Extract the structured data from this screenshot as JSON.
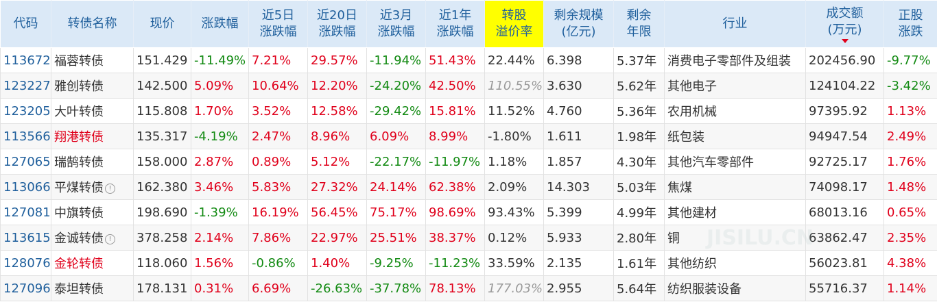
{
  "colors": {
    "up": "#e0001b",
    "down": "#128a12",
    "header_bg": "#dbe9f7",
    "highlight": "#ffff00",
    "code": "#1f5f9c"
  },
  "headers": {
    "code": "代码",
    "name": "转债名称",
    "price": "现价",
    "change": "涨跌幅",
    "change5d": "近5日\n涨跌幅",
    "change20d": "近20日\n涨跌幅",
    "change3m": "近3月\n涨跌幅",
    "change1y": "近1年\n涨跌幅",
    "premium": "转股\n溢价率",
    "scale": "剩余规模\n(亿元)",
    "years": "剩余\n年限",
    "industry": "行业",
    "volume": "成交额\n(万元)",
    "stock_change": "正股\n涨跌"
  },
  "sort": {
    "column": "volume",
    "direction": "desc"
  },
  "rows": [
    {
      "code": "113672",
      "name": "福蓉转债",
      "name_red": false,
      "info": false,
      "price": "151.429",
      "change": "-11.49%",
      "change5d": "7.21%",
      "change20d": "29.57%",
      "change3m": "-11.94%",
      "change1y": "51.43%",
      "premium": "22.44%",
      "premium_muted": false,
      "scale": "6.398",
      "years": "5.37年",
      "industry": "消费电子零部件及组装",
      "volume": "202456.90",
      "stock_change": "-9.77%"
    },
    {
      "code": "123227",
      "name": "雅创转债",
      "name_red": false,
      "info": false,
      "price": "142.500",
      "change": "5.09%",
      "change5d": "10.64%",
      "change20d": "12.20%",
      "change3m": "-24.20%",
      "change1y": "42.50%",
      "premium": "110.55%",
      "premium_muted": true,
      "scale": "3.630",
      "years": "5.62年",
      "industry": "其他电子",
      "volume": "124104.22",
      "stock_change": "-3.42%"
    },
    {
      "code": "123205",
      "name": "大叶转债",
      "name_red": false,
      "info": false,
      "price": "115.808",
      "change": "1.70%",
      "change5d": "3.52%",
      "change20d": "12.58%",
      "change3m": "-29.42%",
      "change1y": "15.81%",
      "premium": "11.52%",
      "premium_muted": false,
      "scale": "4.760",
      "years": "5.36年",
      "industry": "农用机械",
      "volume": "97395.92",
      "stock_change": "1.13%"
    },
    {
      "code": "113566",
      "name": "翔港转债",
      "name_red": true,
      "info": false,
      "price": "135.317",
      "change": "-4.19%",
      "change5d": "2.47%",
      "change20d": "8.96%",
      "change3m": "6.09%",
      "change1y": "8.99%",
      "premium": "-1.80%",
      "premium_muted": false,
      "scale": "1.611",
      "years": "1.98年",
      "industry": "纸包装",
      "volume": "94947.54",
      "stock_change": "2.49%"
    },
    {
      "code": "127065",
      "name": "瑞鹄转债",
      "name_red": false,
      "info": false,
      "price": "158.000",
      "change": "2.87%",
      "change5d": "0.89%",
      "change20d": "5.12%",
      "change3m": "-22.17%",
      "change1y": "-11.97%",
      "premium": "1.18%",
      "premium_muted": false,
      "scale": "1.857",
      "years": "4.30年",
      "industry": "其他汽车零部件",
      "volume": "92725.17",
      "stock_change": "1.76%"
    },
    {
      "code": "113066",
      "name": "平煤转债",
      "name_red": false,
      "info": true,
      "price": "162.380",
      "change": "3.46%",
      "change5d": "5.83%",
      "change20d": "27.32%",
      "change3m": "24.14%",
      "change1y": "62.38%",
      "premium": "2.09%",
      "premium_muted": false,
      "scale": "14.303",
      "years": "5.03年",
      "industry": "焦煤",
      "volume": "74098.17",
      "stock_change": "1.48%"
    },
    {
      "code": "127081",
      "name": "中旗转债",
      "name_red": false,
      "info": false,
      "price": "198.690",
      "change": "-1.39%",
      "change5d": "16.19%",
      "change20d": "56.45%",
      "change3m": "75.17%",
      "change1y": "98.69%",
      "premium": "93.43%",
      "premium_muted": false,
      "scale": "5.399",
      "years": "4.99年",
      "industry": "其他建材",
      "volume": "68013.16",
      "stock_change": "0.65%"
    },
    {
      "code": "113615",
      "name": "金诚转债",
      "name_red": false,
      "info": true,
      "price": "378.258",
      "change": "2.14%",
      "change5d": "7.86%",
      "change20d": "22.97%",
      "change3m": "25.51%",
      "change1y": "38.37%",
      "premium": "0.12%",
      "premium_muted": false,
      "scale": "5.933",
      "years": "2.80年",
      "industry": "铜",
      "volume": "63862.47",
      "stock_change": "2.35%"
    },
    {
      "code": "128076",
      "name": "金轮转债",
      "name_red": true,
      "info": false,
      "price": "118.060",
      "change": "1.56%",
      "change5d": "-0.86%",
      "change20d": "1.40%",
      "change3m": "-9.25%",
      "change1y": "-11.23%",
      "premium": "33.59%",
      "premium_muted": false,
      "scale": "2.135",
      "years": "1.61年",
      "industry": "其他纺织",
      "volume": "56023.81",
      "stock_change": "4.38%"
    },
    {
      "code": "127096",
      "name": "泰坦转债",
      "name_red": false,
      "info": false,
      "price": "178.131",
      "change": "0.31%",
      "change5d": "6.69%",
      "change20d": "-26.63%",
      "change3m": "-37.78%",
      "change1y": "78.13%",
      "premium": "177.03%",
      "premium_muted": true,
      "scale": "2.955",
      "years": "5.64年",
      "industry": "纺织服装设备",
      "volume": "55716.37",
      "stock_change": "1.14%"
    }
  ]
}
